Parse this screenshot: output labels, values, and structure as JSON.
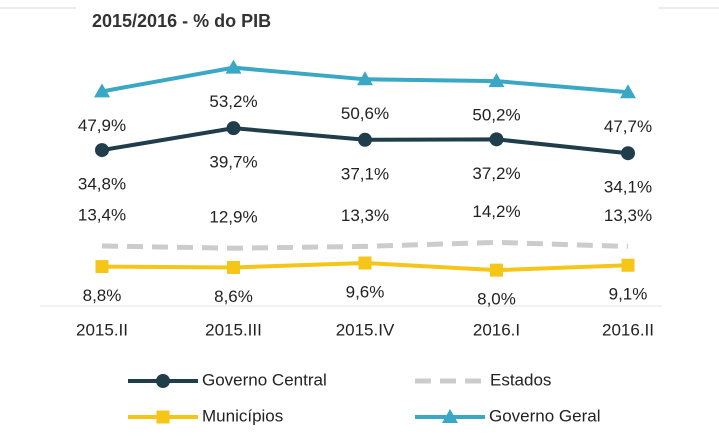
{
  "chart_data": {
    "type": "line",
    "title": "2015/2016 - % do PIB",
    "categories": [
      "2015.II",
      "2015.III",
      "2015.IV",
      "2016.I",
      "2016.II"
    ],
    "series": [
      {
        "name": "Governo Central",
        "color": "#1f3d4a",
        "marker": "circle",
        "values": [
          34.8,
          39.7,
          37.1,
          37.2,
          34.1
        ],
        "value_labels": [
          "34,8%",
          "39,7%",
          "37,1%",
          "37,2%",
          "34,1%"
        ]
      },
      {
        "name": "Estados",
        "color": "#cccccc",
        "dashed": true,
        "values": [
          13.4,
          12.9,
          13.3,
          14.2,
          13.3
        ],
        "value_labels": [
          "13,4%",
          "12,9%",
          "13,3%",
          "14,2%",
          "13,3%"
        ]
      },
      {
        "name": "Municípios",
        "color": "#f5c518",
        "marker": "square",
        "values": [
          8.8,
          8.6,
          9.6,
          8.0,
          9.1
        ],
        "value_labels": [
          "8,8%",
          "8,6%",
          "9,6%",
          "8,0%",
          "9,1%"
        ]
      },
      {
        "name": "Governo Geral",
        "color": "#3aa8c4",
        "marker": "triangle",
        "values": [
          47.9,
          53.2,
          50.6,
          50.2,
          47.7
        ],
        "value_labels": [
          "47,9%",
          "53,2%",
          "50,6%",
          "50,2%",
          "47,7%"
        ]
      }
    ]
  }
}
